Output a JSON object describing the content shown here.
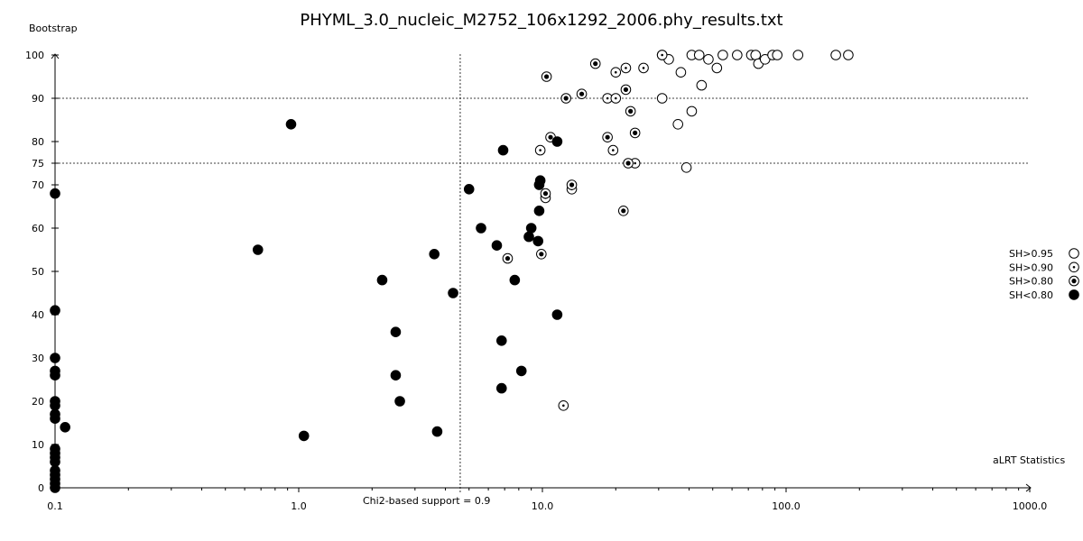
{
  "chart_data": {
    "type": "scatter",
    "title": "PHYML_3.0_nucleic_M2752_106x1292_2006.phy_results.txt",
    "xlabel": "aLRT Statistics",
    "ylabel": "Bootstrap",
    "x_scale": "log",
    "xlim": [
      0.1,
      1000
    ],
    "ylim": [
      0,
      100
    ],
    "x_ticks": [
      {
        "v": 0.1,
        "label": "0.1"
      },
      {
        "v": 1,
        "label": "1.0"
      },
      {
        "v": 10,
        "label": "10.0"
      },
      {
        "v": 100,
        "label": "100.0"
      },
      {
        "v": 1000,
        "label": "1000.0"
      }
    ],
    "y_ticks": [
      {
        "v": 0,
        "label": "0"
      },
      {
        "v": 10,
        "label": "10"
      },
      {
        "v": 20,
        "label": "20"
      },
      {
        "v": 30,
        "label": "30"
      },
      {
        "v": 40,
        "label": "40"
      },
      {
        "v": 50,
        "label": "50"
      },
      {
        "v": 60,
        "label": "60"
      },
      {
        "v": 70,
        "label": "70"
      },
      {
        "v": 75,
        "label": "75"
      },
      {
        "v": 80,
        "label": "80"
      },
      {
        "v": 90,
        "label": "90"
      },
      {
        "v": 100,
        "label": "100"
      }
    ],
    "reference_lines": {
      "vertical": {
        "x": 4.6,
        "label": "Chi2-based support = 0.9"
      },
      "horizontal": [
        75,
        90
      ]
    },
    "legend_position": "right",
    "grid": false,
    "series": [
      {
        "name": "SH>0.95",
        "marker": "open",
        "points": [
          [
            31,
            100
          ],
          [
            33,
            99
          ],
          [
            41,
            100
          ],
          [
            44,
            100
          ],
          [
            48,
            99
          ],
          [
            52,
            97
          ],
          [
            55,
            100
          ],
          [
            63,
            100
          ],
          [
            72,
            100
          ],
          [
            75,
            100
          ],
          [
            77,
            98
          ],
          [
            82,
            99
          ],
          [
            88,
            100
          ],
          [
            92,
            100
          ],
          [
            112,
            100
          ],
          [
            160,
            100
          ],
          [
            180,
            100
          ],
          [
            37,
            96
          ],
          [
            45,
            93
          ],
          [
            31,
            90
          ],
          [
            41,
            87
          ],
          [
            36,
            84
          ],
          [
            39,
            74
          ]
        ]
      },
      {
        "name": "SH>0.90",
        "marker": "dot",
        "points": [
          [
            31,
            100
          ],
          [
            20,
            96
          ],
          [
            22,
            97
          ],
          [
            26,
            97
          ],
          [
            18.5,
            90
          ],
          [
            20,
            90
          ],
          [
            19.5,
            78
          ],
          [
            9.8,
            78
          ],
          [
            24,
            75
          ],
          [
            10.3,
            67
          ],
          [
            13.2,
            69
          ],
          [
            12.2,
            19
          ]
        ]
      },
      {
        "name": "SH>0.80",
        "marker": "ring",
        "points": [
          [
            16.5,
            98
          ],
          [
            10.4,
            95
          ],
          [
            12.5,
            90
          ],
          [
            14.5,
            91
          ],
          [
            22,
            92
          ],
          [
            23,
            87
          ],
          [
            18.5,
            81
          ],
          [
            24,
            82
          ],
          [
            10.8,
            81
          ],
          [
            22.5,
            75
          ],
          [
            13.2,
            70
          ],
          [
            10.3,
            68
          ],
          [
            21.5,
            64
          ],
          [
            7.2,
            53
          ],
          [
            9.9,
            54
          ]
        ]
      },
      {
        "name": "SH<0.80",
        "marker": "filled",
        "points": [
          [
            0.93,
            84
          ],
          [
            6.9,
            78
          ],
          [
            11.5,
            80
          ],
          [
            9.7,
            70
          ],
          [
            9.8,
            71
          ],
          [
            5,
            69
          ],
          [
            0.1,
            68
          ],
          [
            9.7,
            64
          ],
          [
            5.6,
            60
          ],
          [
            9,
            60
          ],
          [
            8.8,
            58
          ],
          [
            9.6,
            57
          ],
          [
            6.5,
            56
          ],
          [
            0.68,
            55
          ],
          [
            3.6,
            54
          ],
          [
            2.2,
            48
          ],
          [
            7.7,
            48
          ],
          [
            4.3,
            45
          ],
          [
            11.5,
            40
          ],
          [
            0.1,
            41
          ],
          [
            2.5,
            36
          ],
          [
            6.8,
            34
          ],
          [
            0.1,
            30
          ],
          [
            0.1,
            27
          ],
          [
            0.1,
            26
          ],
          [
            2.5,
            26
          ],
          [
            8.2,
            27
          ],
          [
            6.8,
            23
          ],
          [
            0.1,
            20
          ],
          [
            2.6,
            20
          ],
          [
            0.1,
            19
          ],
          [
            0.1,
            17
          ],
          [
            0.1,
            16
          ],
          [
            0.11,
            14
          ],
          [
            3.7,
            13
          ],
          [
            1.05,
            12
          ],
          [
            0.1,
            9
          ],
          [
            0.1,
            8
          ],
          [
            0.1,
            7
          ],
          [
            0.1,
            6
          ],
          [
            0.1,
            4
          ],
          [
            0.1,
            3
          ],
          [
            0.1,
            2
          ],
          [
            0.1,
            1
          ],
          [
            0.1,
            0
          ]
        ]
      }
    ]
  }
}
